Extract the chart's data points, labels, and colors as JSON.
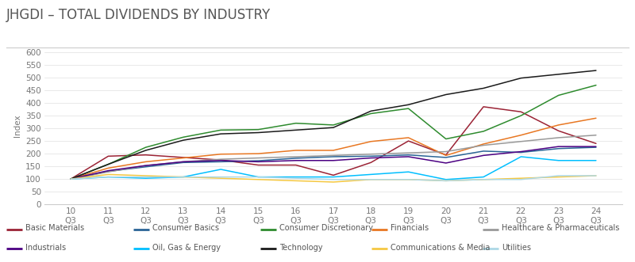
{
  "title": "JHGDI – TOTAL DIVIDENDS BY INDUSTRY",
  "ylabel": "Index",
  "ylim": [
    0,
    620
  ],
  "yticks": [
    0,
    50,
    100,
    150,
    200,
    250,
    300,
    350,
    400,
    450,
    500,
    550,
    600
  ],
  "x_labels": [
    "10\nQ3",
    "11\nQ3",
    "12\nQ3",
    "13\nQ3",
    "14\nQ3",
    "15\nQ3",
    "16\nQ3",
    "17\nQ3",
    "18\nQ3",
    "19\nQ3",
    "20\nQ3",
    "21\nQ3",
    "22\nQ3",
    "23\nQ3",
    "24\nQ3"
  ],
  "series": {
    "Basic Materials": {
      "color": "#9B2335",
      "data": [
        100,
        190,
        195,
        185,
        175,
        155,
        155,
        115,
        165,
        250,
        195,
        385,
        365,
        290,
        240
      ]
    },
    "Consumer Basics": {
      "color": "#2A6496",
      "data": [
        100,
        130,
        148,
        165,
        168,
        172,
        182,
        188,
        190,
        195,
        185,
        210,
        205,
        220,
        225
      ]
    },
    "Consumer Discretionary": {
      "color": "#2E8B2E",
      "data": [
        100,
        158,
        225,
        265,
        293,
        295,
        320,
        313,
        358,
        378,
        258,
        288,
        350,
        430,
        470
      ]
    },
    "Financials": {
      "color": "#E87722",
      "data": [
        100,
        143,
        168,
        183,
        198,
        200,
        213,
        213,
        248,
        263,
        193,
        238,
        273,
        313,
        340
      ]
    },
    "Healthcare & Pharmaceuticals": {
      "color": "#999999",
      "data": [
        100,
        128,
        153,
        168,
        178,
        183,
        188,
        193,
        198,
        203,
        208,
        233,
        248,
        263,
        273
      ]
    },
    "Industrials": {
      "color": "#4B0082",
      "data": [
        100,
        133,
        153,
        168,
        173,
        168,
        173,
        173,
        183,
        188,
        163,
        193,
        208,
        228,
        228
      ]
    },
    "Oil, Gas & Energy": {
      "color": "#00BFFF",
      "data": [
        100,
        108,
        103,
        108,
        138,
        108,
        108,
        108,
        118,
        128,
        98,
        108,
        188,
        173,
        173
      ]
    },
    "Technology": {
      "color": "#1A1A1A",
      "data": [
        100,
        158,
        213,
        253,
        278,
        283,
        293,
        303,
        368,
        393,
        433,
        458,
        498,
        513,
        528
      ]
    },
    "Communications & Media": {
      "color": "#F5C842",
      "data": [
        100,
        118,
        113,
        108,
        103,
        98,
        93,
        88,
        98,
        98,
        93,
        98,
        103,
        108,
        113
      ]
    },
    "Utilities": {
      "color": "#ADD8E6",
      "data": [
        100,
        108,
        108,
        108,
        108,
        108,
        103,
        98,
        98,
        98,
        93,
        98,
        98,
        113,
        113
      ]
    }
  },
  "legend_rows": [
    [
      "Basic Materials",
      "Consumer Basics",
      "Consumer Discretionary",
      "Financials",
      "Healthcare & Pharmaceuticals"
    ],
    [
      "Industrials",
      "Oil, Gas & Energy",
      "Technology",
      "Communications & Media",
      "Utilities"
    ]
  ],
  "background_color": "#FFFFFF",
  "title_fontsize": 12,
  "axis_fontsize": 7.5,
  "legend_fontsize": 7
}
